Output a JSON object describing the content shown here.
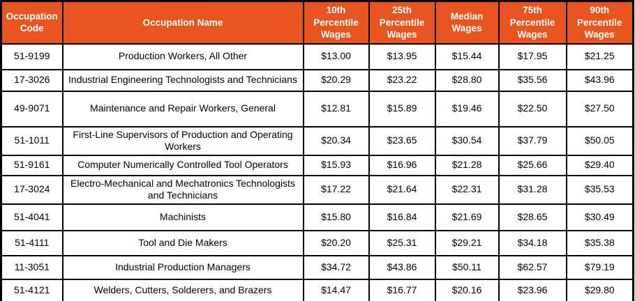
{
  "colors": {
    "header_bg": "#E7541F",
    "header_text": "#FFFFFF",
    "border": "#000000",
    "body_text": "#000000",
    "background": "#FFFFFF"
  },
  "chart_data": {
    "type": "table",
    "columns": [
      "Occupation Code",
      "Occupation Name",
      "10th Percentile Wages",
      "25th Percentile Wages",
      "Median Wages",
      "75th Percentile Wages",
      "90th Percentile Wages"
    ],
    "rows": [
      {
        "code": "51-9199",
        "name": "Production Workers, All Other",
        "p10": "$13.00",
        "p25": "$13.95",
        "median": "$15.44",
        "p75": "$17.95",
        "p90": "$21.25"
      },
      {
        "code": "17-3026",
        "name": "Industrial Engineering Technologists and Technicians",
        "p10": "$20.29",
        "p25": "$23.22",
        "median": "$28.80",
        "p75": "$35.56",
        "p90": "$43.96"
      },
      {
        "code": "49-9071",
        "name": "Maintenance and Repair Workers, General",
        "p10": "$12.81",
        "p25": "$15.89",
        "median": "$19.46",
        "p75": "$22.50",
        "p90": "$27.50"
      },
      {
        "code": "51-1011",
        "name": "First-Line Supervisors of Production and Operating Workers",
        "p10": "$20.34",
        "p25": "$23.65",
        "median": "$30.54",
        "p75": "$37.79",
        "p90": "$50.05"
      },
      {
        "code": "51-9161",
        "name": "Computer Numerically Controlled Tool Operators",
        "p10": "$15.93",
        "p25": "$16.96",
        "median": "$21.28",
        "p75": "$25.66",
        "p90": "$29.40"
      },
      {
        "code": "17-3024",
        "name": "Electro-Mechanical and Mechatronics Technologists and Technicians",
        "p10": "$17.22",
        "p25": "$21.64",
        "median": "$22.31",
        "p75": "$31.28",
        "p90": "$35.53"
      },
      {
        "code": "51-4041",
        "name": "Machinists",
        "p10": "$15.80",
        "p25": "$16.84",
        "median": "$21.69",
        "p75": "$28.65",
        "p90": "$30.49"
      },
      {
        "code": "51-4111",
        "name": "Tool and Die Makers",
        "p10": "$20.20",
        "p25": "$25.31",
        "median": "$29.21",
        "p75": "$34.18",
        "p90": "$35.38"
      },
      {
        "code": "11-3051",
        "name": "Industrial Production Managers",
        "p10": "$34.72",
        "p25": "$43.86",
        "median": "$50.11",
        "p75": "$62.57",
        "p90": "$79.19"
      },
      {
        "code": "51-4121",
        "name": "Welders, Cutters, Solderers, and Brazers",
        "p10": "$14.47",
        "p25": "$16.77",
        "median": "$20.16",
        "p75": "$23.96",
        "p90": "$29.80"
      }
    ]
  }
}
